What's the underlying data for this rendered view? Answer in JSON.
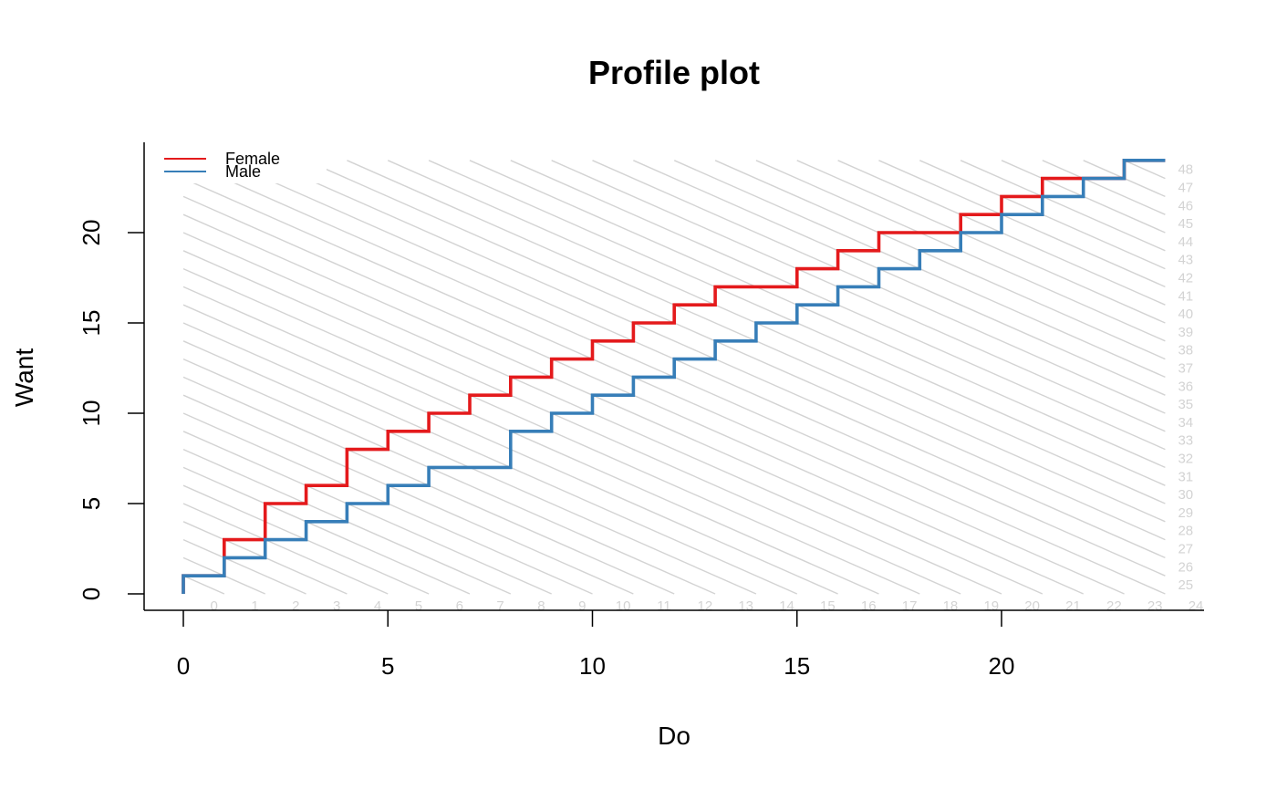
{
  "chart_data": {
    "type": "line",
    "subtype": "step",
    "title": "Profile plot",
    "xlabel": "Do",
    "ylabel": "Want",
    "xlim": [
      -1,
      25
    ],
    "ylim": [
      -0.6,
      24.8
    ],
    "xticks": [
      0,
      5,
      10,
      15,
      20
    ],
    "yticks": [
      0,
      5,
      10,
      15,
      20
    ],
    "legend": {
      "position": "top-left",
      "entries": [
        "Female",
        "Male"
      ]
    },
    "grid": false,
    "diagonal_reference_lines": {
      "color": "#d3d3d3",
      "description": "iso-lines of Do + Want",
      "bottom_labels": [
        "0",
        "1",
        "2",
        "3",
        "4",
        "5",
        "6",
        "7",
        "8",
        "9",
        "10",
        "11",
        "12",
        "13",
        "14",
        "15",
        "16",
        "17",
        "18",
        "19",
        "20",
        "21",
        "22",
        "23",
        "24"
      ],
      "right_labels": [
        "25",
        "26",
        "27",
        "28",
        "29",
        "30",
        "31",
        "32",
        "33",
        "34",
        "35",
        "36",
        "37",
        "38",
        "39",
        "40",
        "41",
        "42",
        "43",
        "44",
        "45",
        "46",
        "47",
        "48"
      ]
    },
    "series": [
      {
        "name": "Female",
        "color": "#e41a1c",
        "x": [
          0,
          0,
          1,
          1,
          2,
          2,
          3,
          3,
          4,
          4,
          5,
          5,
          6,
          6,
          7,
          7,
          8,
          8,
          9,
          9,
          10,
          10,
          11,
          11,
          12,
          12,
          13,
          13,
          14,
          15,
          15,
          16,
          16,
          17,
          17,
          18,
          19,
          19,
          20,
          20,
          21,
          21,
          22,
          23,
          23,
          24
        ],
        "y": [
          0,
          1,
          1,
          3,
          3,
          5,
          5,
          6,
          6,
          8,
          8,
          9,
          9,
          10,
          10,
          11,
          11,
          12,
          12,
          13,
          13,
          14,
          14,
          15,
          15,
          16,
          16,
          17,
          17,
          17,
          18,
          18,
          19,
          19,
          20,
          20,
          20,
          21,
          21,
          22,
          22,
          23,
          23,
          23,
          24,
          24
        ]
      },
      {
        "name": "Male",
        "color": "#377eb8",
        "x": [
          0,
          0,
          1,
          1,
          2,
          2,
          3,
          3,
          4,
          4,
          5,
          5,
          6,
          6,
          7,
          8,
          8,
          9,
          9,
          10,
          10,
          11,
          11,
          12,
          12,
          13,
          13,
          14,
          14,
          15,
          15,
          16,
          16,
          17,
          17,
          18,
          18,
          19,
          19,
          20,
          20,
          21,
          21,
          22,
          22,
          23,
          23,
          24
        ],
        "y": [
          0,
          1,
          1,
          2,
          2,
          3,
          3,
          4,
          4,
          5,
          5,
          6,
          6,
          7,
          7,
          7,
          9,
          9,
          10,
          10,
          11,
          11,
          12,
          12,
          13,
          13,
          14,
          14,
          15,
          15,
          16,
          16,
          17,
          17,
          18,
          18,
          19,
          19,
          20,
          20,
          21,
          21,
          22,
          22,
          23,
          23,
          24,
          24
        ]
      }
    ]
  }
}
